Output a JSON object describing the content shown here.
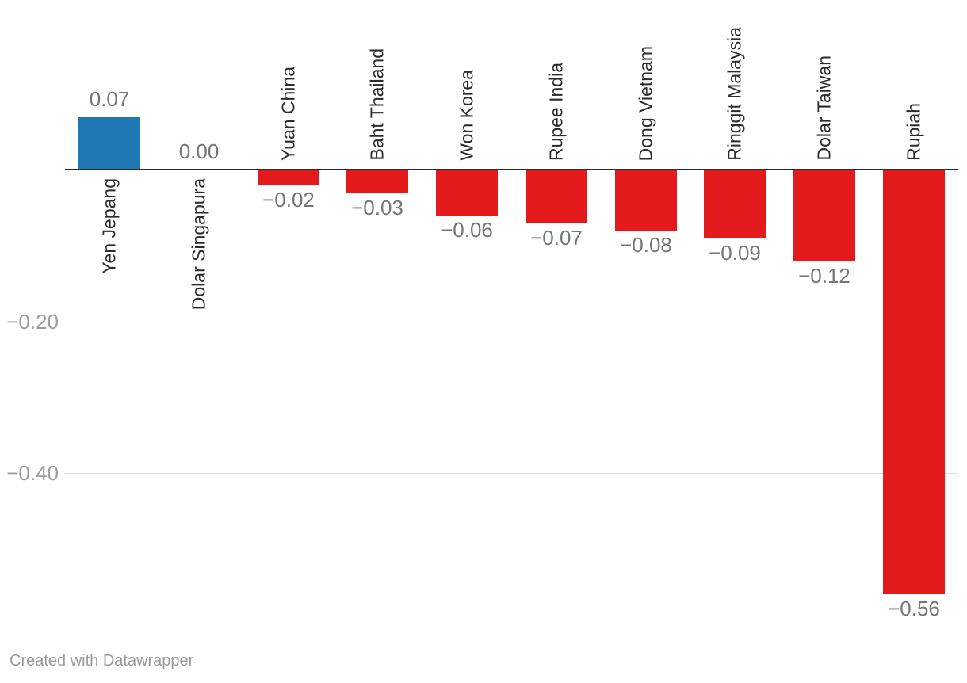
{
  "chart_data": {
    "type": "bar",
    "orientation": "vertical",
    "title": "",
    "xlabel": "",
    "ylabel": "",
    "categories": [
      "Yen Jepang",
      "Dolar Singapura",
      "Yuan China",
      "Baht Thailand",
      "Won Korea",
      "Rupee India",
      "Dong Vietnam",
      "Ringgit Malaysia",
      "Dolar Taiwan",
      "Rupiah"
    ],
    "values": [
      0.07,
      0.0,
      -0.02,
      -0.03,
      -0.06,
      -0.07,
      -0.08,
      -0.09,
      -0.12,
      -0.56
    ],
    "value_labels": [
      "0.07",
      "0.00",
      "−0.02",
      "−0.03",
      "−0.06",
      "−0.07",
      "−0.08",
      "−0.09",
      "−0.12",
      "−0.56"
    ],
    "yticks": [
      {
        "value": -0.2,
        "label": "−0.20"
      },
      {
        "value": -0.4,
        "label": "−0.40"
      }
    ],
    "ylim": [
      -0.6,
      0.1
    ],
    "grid": "horizontal",
    "legend": "none",
    "positive_color": "#1f77b4",
    "negative_color": "#e21a1c"
  },
  "footer": {
    "credit": "Created with Datawrapper"
  }
}
